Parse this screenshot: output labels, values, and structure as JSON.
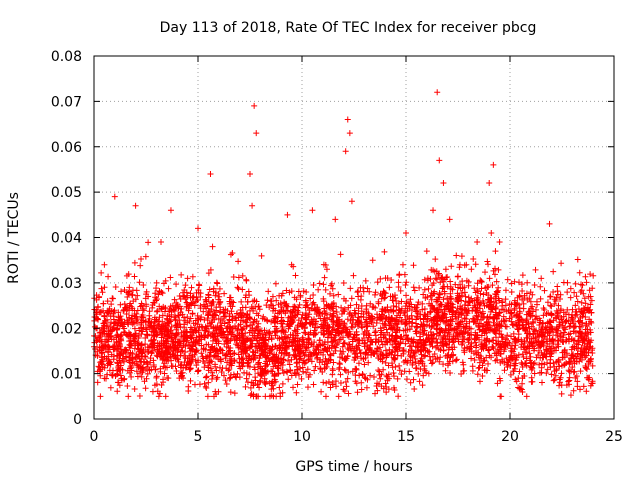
{
  "chart_data": {
    "type": "scatter",
    "title": "Day 113 of 2018, Rate Of TEC Index for receiver pbcg",
    "xlabel": "GPS time / hours",
    "ylabel": "ROTI / TECUs",
    "xlim": [
      0,
      25
    ],
    "ylim": [
      0,
      0.08
    ],
    "xticks": [
      0,
      5,
      10,
      15,
      20,
      25
    ],
    "xtick_labels": [
      "0",
      "5",
      "10",
      "15",
      "20",
      "25"
    ],
    "yticks": [
      0,
      0.01,
      0.02,
      0.03,
      0.04,
      0.05,
      0.06,
      0.07,
      0.08
    ],
    "ytick_labels": [
      "0",
      "0.01",
      "0.02",
      "0.03",
      "0.04",
      "0.05",
      "0.06",
      "0.07",
      "0.08"
    ],
    "grid": true,
    "marker": "+",
    "color": "#ff0000",
    "series": [
      {
        "name": "ROTI",
        "x": [
          0.2,
          0.5,
          0.8,
          1.0,
          1.3,
          1.7,
          2.0,
          2.1,
          2.3,
          2.6,
          3.0,
          3.3,
          3.7,
          3.8,
          4.1,
          4.5,
          4.7,
          5.0,
          5.4,
          5.6,
          5.7,
          5.8,
          6.1,
          6.5,
          6.9,
          7.2,
          7.5,
          7.6,
          7.7,
          7.8,
          7.9,
          8.2,
          8.6,
          9.0,
          9.3,
          9.5,
          9.8,
          10.2,
          10.5,
          10.9,
          11.2,
          11.6,
          11.9,
          12.1,
          12.2,
          12.3,
          12.4,
          12.7,
          13.0,
          13.4,
          13.8,
          14.2,
          14.6,
          15.0,
          15.3,
          15.7,
          16.0,
          16.3,
          16.5,
          16.6,
          16.8,
          17.1,
          17.5,
          17.9,
          18.3,
          18.7,
          19.0,
          19.1,
          19.2,
          19.3,
          19.6,
          20.0,
          20.4,
          20.8,
          21.1,
          21.5,
          21.9,
          22.2,
          22.6,
          23.0,
          23.4,
          23.7
        ],
        "y": [
          0.018,
          0.034,
          0.012,
          0.049,
          0.015,
          0.029,
          0.047,
          0.022,
          0.011,
          0.027,
          0.019,
          0.013,
          0.046,
          0.024,
          0.009,
          0.031,
          0.018,
          0.042,
          0.026,
          0.054,
          0.038,
          0.014,
          0.022,
          0.011,
          0.029,
          0.017,
          0.054,
          0.047,
          0.069,
          0.063,
          0.021,
          0.008,
          0.025,
          0.013,
          0.045,
          0.034,
          0.016,
          0.028,
          0.046,
          0.011,
          0.033,
          0.044,
          0.019,
          0.059,
          0.066,
          0.063,
          0.048,
          0.027,
          0.012,
          0.035,
          0.018,
          0.029,
          0.014,
          0.041,
          0.022,
          0.011,
          0.037,
          0.046,
          0.072,
          0.057,
          0.052,
          0.044,
          0.021,
          0.034,
          0.013,
          0.026,
          0.052,
          0.041,
          0.056,
          0.037,
          0.018,
          0.024,
          0.009,
          0.023,
          0.016,
          0.031,
          0.043,
          0.026,
          0.019,
          0.014,
          0.028,
          0.011
        ]
      }
    ],
    "dense_band": {
      "description_values": "bulk of points between 0.007 and 0.035 across 0-24 h; densest 0.010-0.028",
      "x_range": [
        0,
        24
      ],
      "y_low": 0.007,
      "y_high": 0.035
    }
  }
}
